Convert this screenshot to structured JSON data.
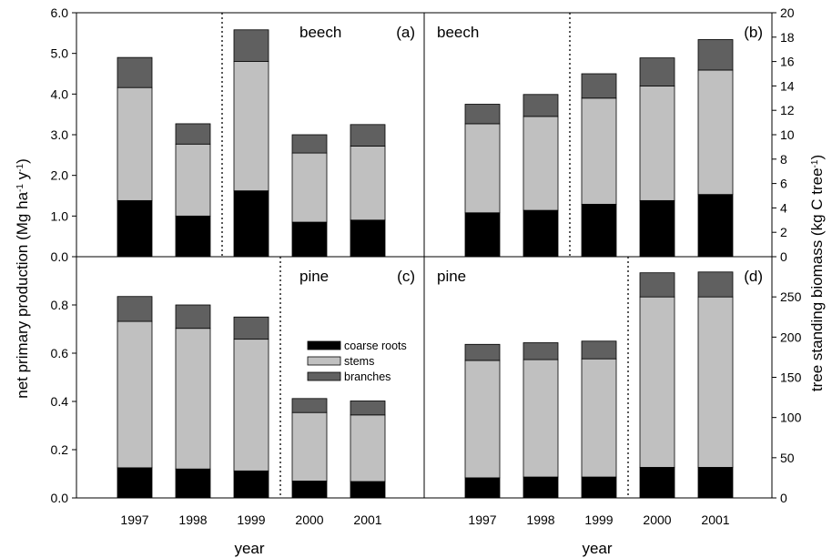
{
  "figure": {
    "ylabel_left_main": "net primary production (Mg ha",
    "ylabel_left_sup1": "-1",
    "ylabel_left_mid": " y",
    "ylabel_left_sup2": "-1",
    "ylabel_left_end": ")",
    "ylabel_right_main": "tree standing biomass (kg C tree",
    "ylabel_right_sup": "-1",
    "ylabel_right_end": ")",
    "xlabel": "year",
    "legend": [
      "coarse roots",
      "stems",
      "branches"
    ]
  },
  "colors": {
    "coarse_roots": "#000000",
    "stems": "#c0c0c0",
    "branches": "#606060"
  },
  "chart_data": [
    {
      "type": "bar",
      "stacked": true,
      "panel": "(a)",
      "species_label": "beech",
      "categories": [
        "1997",
        "1998",
        "1999",
        "2000",
        "2001"
      ],
      "ylim": [
        0,
        6
      ],
      "yticks": [
        "0.0",
        "1.0",
        "2.0",
        "3.0",
        "4.0",
        "5.0",
        "6.0"
      ],
      "divider_after_index": 1,
      "series": [
        {
          "name": "coarse roots",
          "values": [
            1.38,
            1.0,
            1.62,
            0.85,
            0.9
          ]
        },
        {
          "name": "stems",
          "values": [
            2.78,
            1.77,
            3.18,
            1.7,
            1.82
          ]
        },
        {
          "name": "branches",
          "values": [
            0.74,
            0.5,
            0.78,
            0.45,
            0.53
          ]
        }
      ]
    },
    {
      "type": "bar",
      "stacked": true,
      "panel": "(b)",
      "species_label": "beech",
      "categories": [
        "1997",
        "1998",
        "1999",
        "2000",
        "2001"
      ],
      "ylim": [
        0,
        20
      ],
      "yticks": [
        "0",
        "2",
        "4",
        "6",
        "8",
        "10",
        "12",
        "14",
        "16",
        "18",
        "20"
      ],
      "divider_after_index": 1,
      "series": [
        {
          "name": "coarse roots",
          "values": [
            3.6,
            3.8,
            4.3,
            4.6,
            5.1
          ]
        },
        {
          "name": "stems",
          "values": [
            7.3,
            7.7,
            8.7,
            9.4,
            10.2
          ]
        },
        {
          "name": "branches",
          "values": [
            1.6,
            1.8,
            2.0,
            2.3,
            2.5
          ]
        }
      ]
    },
    {
      "type": "bar",
      "stacked": true,
      "panel": "(c)",
      "species_label": "pine",
      "categories": [
        "1997",
        "1998",
        "1999",
        "2000",
        "2001"
      ],
      "ylim": [
        0,
        1.0
      ],
      "yticks": [
        "0.0",
        "0.2",
        "0.4",
        "0.6",
        "0.8"
      ],
      "divider_after_index": 2,
      "series": [
        {
          "name": "coarse roots",
          "values": [
            0.125,
            0.12,
            0.112,
            0.07,
            0.068
          ]
        },
        {
          "name": "stems",
          "values": [
            0.607,
            0.583,
            0.546,
            0.284,
            0.276
          ]
        },
        {
          "name": "branches",
          "values": [
            0.103,
            0.097,
            0.092,
            0.058,
            0.058
          ]
        }
      ]
    },
    {
      "type": "bar",
      "stacked": true,
      "panel": "(d)",
      "species_label": "pine",
      "categories": [
        "1997",
        "1998",
        "1999",
        "2000",
        "2001"
      ],
      "ylim": [
        0,
        300
      ],
      "yticks": [
        "0",
        "50",
        "100",
        "150",
        "200",
        "250"
      ],
      "divider_after_index": 2,
      "series": [
        {
          "name": "coarse roots",
          "values": [
            25,
            26,
            26,
            38,
            38
          ]
        },
        {
          "name": "stems",
          "values": [
            146,
            146,
            147,
            212,
            212
          ]
        },
        {
          "name": "branches",
          "values": [
            20,
            21,
            22,
            30,
            31
          ]
        }
      ]
    }
  ]
}
